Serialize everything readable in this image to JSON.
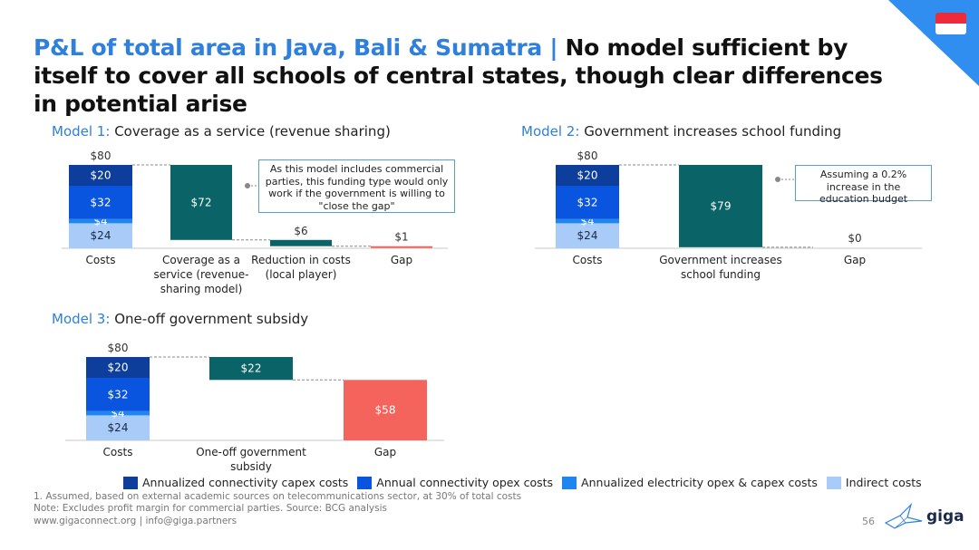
{
  "title_highlight": "P&L of total area in Java, Bali & Sumatra |",
  "title_rest": " No model sufficient by itself to cover all schools of central states, though clear differences in potential arise",
  "colors": {
    "capex": "#0d3e9c",
    "opex": "#0a55e0",
    "electricity": "#1f86f0",
    "indirect": "#a9cbf7",
    "teal": "#0a6366",
    "gap_red": "#f4645c",
    "accent": "#2f7fdc"
  },
  "models": [
    {
      "label": "Model 1:",
      "title": "Coverage as a service (revenue sharing)",
      "callout": "As this model includes commercial parties, this funding type would only work if the government is willing to \"close the gap\""
    },
    {
      "label": "Model 2:",
      "title": "Government increases school funding",
      "callout": "Assuming a 0.2% increase in the education budget"
    },
    {
      "label": "Model 3:",
      "title": "One-off government subsidy",
      "callout": ""
    }
  ],
  "chart_data": [
    {
      "type": "bar",
      "subtype": "waterfall",
      "title": "Coverage as a service (revenue sharing)",
      "categories": [
        "Costs",
        "Coverage as a service (revenue-sharing model)",
        "Reduction in costs (local player)",
        "Gap"
      ],
      "total_label": "$80",
      "cost_stack": [
        {
          "name": "Indirect costs",
          "value": 24,
          "label": "$24"
        },
        {
          "name": "Annualized electricity opex & capex costs",
          "value": 4,
          "label": "$4"
        },
        {
          "name": "Annual connectivity opex costs",
          "value": 32,
          "label": "$32"
        },
        {
          "name": "Annualized connectivity capex costs",
          "value": 20,
          "label": "$20"
        }
      ],
      "steps": [
        {
          "category": "Coverage as a service (revenue-sharing model)",
          "value": 72,
          "label": "$72"
        },
        {
          "category": "Reduction in costs (local player)",
          "value": 6,
          "label": "$6"
        },
        {
          "category": "Gap",
          "value": 1,
          "label": "$1"
        }
      ],
      "ylim": [
        0,
        80
      ]
    },
    {
      "type": "bar",
      "subtype": "waterfall",
      "title": "Government increases school funding",
      "categories": [
        "Costs",
        "Government increases school funding",
        "Gap"
      ],
      "total_label": "$80",
      "cost_stack": [
        {
          "name": "Indirect costs",
          "value": 24,
          "label": "$24"
        },
        {
          "name": "Annualized electricity opex & capex costs",
          "value": 4,
          "label": "$4"
        },
        {
          "name": "Annual connectivity opex costs",
          "value": 32,
          "label": "$32"
        },
        {
          "name": "Annualized connectivity capex costs",
          "value": 20,
          "label": "$20"
        }
      ],
      "steps": [
        {
          "category": "Government increases school funding",
          "value": 79,
          "label": "$79"
        },
        {
          "category": "Gap",
          "value": 0,
          "label": "$0"
        }
      ],
      "ylim": [
        0,
        80
      ]
    },
    {
      "type": "bar",
      "subtype": "waterfall",
      "title": "One-off government subsidy",
      "categories": [
        "Costs",
        "One-off government subsidy",
        "Gap"
      ],
      "total_label": "$80",
      "cost_stack": [
        {
          "name": "Indirect costs",
          "value": 24,
          "label": "$24"
        },
        {
          "name": "Annualized electricity opex & capex costs",
          "value": 4,
          "label": "$4"
        },
        {
          "name": "Annual connectivity opex costs",
          "value": 32,
          "label": "$32"
        },
        {
          "name": "Annualized connectivity capex costs",
          "value": 20,
          "label": "$20"
        }
      ],
      "steps": [
        {
          "category": "One-off government subsidy",
          "value": 22,
          "label": "$22"
        },
        {
          "category": "Gap",
          "value": 58,
          "label": "$58"
        }
      ],
      "ylim": [
        0,
        80
      ]
    }
  ],
  "legend": [
    {
      "label": "Annualized connectivity capex costs",
      "color": "#0d3e9c"
    },
    {
      "label": "Annual connectivity opex costs",
      "color": "#0a55e0"
    },
    {
      "label": "Annualized electricity opex & capex costs",
      "color": "#1f86f0"
    },
    {
      "label": "Indirect costs",
      "color": "#a9cbf7"
    }
  ],
  "footnotes": {
    "note1": "1.   Assumed, based on external academic sources on telecommunications sector, at 30% of total costs",
    "note2": "Note: Excludes profit margin for commercial parties. Source: BCG analysis",
    "links": "www.gigaconnect.org  |  info@giga.partners"
  },
  "page_number": "56",
  "logo_text": "giga"
}
